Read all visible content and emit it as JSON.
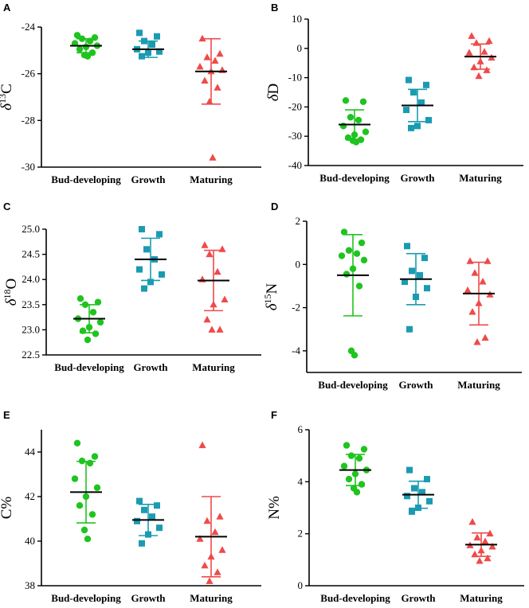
{
  "colors": {
    "bud": "#1fc41f",
    "growth": "#1a9bb2",
    "maturing": "#ef4a4a",
    "mean": "#000000",
    "axis": "#000000"
  },
  "chart_data": [
    {
      "panel": "A",
      "type": "scatter",
      "ylabel": "δ13C",
      "ylim": [
        -30,
        -24
      ],
      "yticks": [
        -24,
        -26,
        -28,
        -30
      ],
      "ytick_labels": [
        "-24",
        "-26",
        "-28",
        "-30"
      ],
      "categories": [
        "Bud-developing",
        "Growth",
        "Maturing"
      ],
      "series": [
        {
          "name": "Bud-developing",
          "marker": "circle",
          "values": [
            -24.35,
            -24.45,
            -24.5,
            -24.6,
            -24.7,
            -24.8,
            -24.85,
            -24.95,
            -25.1,
            -25.2,
            -25.25
          ],
          "mean": -24.8,
          "sd": 0.3
        },
        {
          "name": "Growth",
          "marker": "square",
          "values": [
            -24.25,
            -24.4,
            -24.6,
            -24.75,
            -24.95,
            -25.05,
            -25.1,
            -25.25
          ],
          "mean": -24.95,
          "sd": 0.35
        },
        {
          "name": "Maturing",
          "marker": "triangle",
          "values": [
            -24.5,
            -25.15,
            -25.3,
            -25.45,
            -25.7,
            -25.85,
            -25.9,
            -26.3,
            -26.6,
            -27.2,
            -29.6
          ],
          "mean": -25.9,
          "sd": 1.4
        }
      ]
    },
    {
      "panel": "B",
      "type": "scatter",
      "ylabel": "δD",
      "ylim": [
        -40,
        10
      ],
      "yticks": [
        10,
        0,
        -10,
        -20,
        -30,
        -40
      ],
      "ytick_labels": [
        "10",
        "0",
        "-10",
        "-20",
        "-30",
        "-40"
      ],
      "categories": [
        "Bud-developing",
        "Growth",
        "Maturing"
      ],
      "series": [
        {
          "name": "Bud-developing",
          "marker": "circle",
          "values": [
            -17.8,
            -18.2,
            -23.5,
            -24.5,
            -26.5,
            -28.5,
            -29.5,
            -30.5,
            -31.2,
            -31.5,
            -32.0
          ],
          "mean": -26.0,
          "sd": 5.0
        },
        {
          "name": "Growth",
          "marker": "square",
          "values": [
            -10.8,
            -12.5,
            -15.0,
            -18.5,
            -21.0,
            -24.5,
            -26.5,
            -27.2
          ],
          "mean": -19.5,
          "sd": 5.5
        },
        {
          "name": "Maturing",
          "marker": "triangle",
          "values": [
            4.2,
            2.5,
            1.8,
            -1.2,
            -1.5,
            -3.2,
            -4.5,
            -6.5,
            -7.5,
            -9.5
          ],
          "mean": -2.8,
          "sd": 4.3
        }
      ]
    },
    {
      "panel": "C",
      "type": "scatter",
      "ylabel": "δ18O",
      "ylim": [
        22.5,
        25.0
      ],
      "yticks": [
        25.0,
        24.5,
        24.0,
        23.5,
        23.0,
        22.5
      ],
      "ytick_labels": [
        "25.0",
        "24.5",
        "24.0",
        "23.5",
        "23.0",
        "22.5"
      ],
      "categories": [
        "Bud-developing",
        "Growth",
        "Maturing"
      ],
      "series": [
        {
          "name": "Bud-developing",
          "marker": "circle",
          "values": [
            23.62,
            23.55,
            23.5,
            23.35,
            23.22,
            23.15,
            23.05,
            22.98,
            22.92,
            22.8
          ],
          "mean": 23.22,
          "sd": 0.28
        },
        {
          "name": "Growth",
          "marker": "square",
          "values": [
            25.0,
            24.9,
            24.6,
            24.4,
            24.2,
            24.1,
            23.95,
            23.82
          ],
          "mean": 24.4,
          "sd": 0.42
        },
        {
          "name": "Maturing",
          "marker": "triangle",
          "values": [
            24.68,
            24.6,
            24.5,
            24.15,
            24.0,
            23.6,
            23.5,
            23.2,
            23.0,
            23.0
          ],
          "mean": 23.98,
          "sd": 0.6
        }
      ]
    },
    {
      "panel": "D",
      "type": "scatter",
      "ylabel": "δ15N",
      "ylim": [
        -5,
        2
      ],
      "yticks": [
        2,
        0,
        -2,
        -4
      ],
      "ytick_labels": [
        "2",
        "0",
        "-2",
        "-4"
      ],
      "categories": [
        "Bud-developing",
        "Growth",
        "Maturing"
      ],
      "series": [
        {
          "name": "Bud-developing",
          "marker": "circle",
          "values": [
            1.5,
            1.0,
            0.65,
            0.5,
            0.4,
            0.2,
            -0.2,
            -0.45,
            -1.0,
            -4.0,
            -4.2
          ],
          "mean": -0.5,
          "sd": 1.88
        },
        {
          "name": "Growth",
          "marker": "square",
          "values": [
            0.85,
            0.3,
            -0.3,
            -0.5,
            -0.8,
            -1.1,
            -1.5,
            -3.0
          ],
          "mean": -0.68,
          "sd": 1.18
        },
        {
          "name": "Maturing",
          "marker": "triangle",
          "values": [
            0.15,
            0.15,
            -0.4,
            -0.8,
            -1.2,
            -1.4,
            -1.8,
            -2.2,
            -3.4,
            -3.6
          ],
          "mean": -1.35,
          "sd": 1.45
        }
      ]
    },
    {
      "panel": "E",
      "type": "scatter",
      "ylabel": "C%",
      "ylim": [
        38,
        45
      ],
      "yticks": [
        44,
        42,
        40,
        38
      ],
      "ytick_labels": [
        "44",
        "42",
        "40",
        "38"
      ],
      "categories": [
        "Bud-developing",
        "Growth",
        "Maturing"
      ],
      "series": [
        {
          "name": "Bud-developing",
          "marker": "circle",
          "values": [
            44.4,
            43.8,
            43.6,
            43.5,
            42.8,
            42.4,
            42.0,
            41.6,
            41.2,
            40.5,
            40.1
          ],
          "mean": 42.2,
          "sd": 1.38
        },
        {
          "name": "Growth",
          "marker": "square",
          "values": [
            41.8,
            41.6,
            41.4,
            41.1,
            40.9,
            40.6,
            40.3,
            39.9
          ],
          "mean": 40.95,
          "sd": 0.7
        },
        {
          "name": "Maturing",
          "marker": "triangle",
          "values": [
            44.3,
            41.1,
            40.9,
            40.4,
            40.1,
            39.6,
            39.3,
            38.9,
            38.6,
            38.2
          ],
          "mean": 40.2,
          "sd": 1.8
        }
      ]
    },
    {
      "panel": "F",
      "type": "scatter",
      "ylabel": "N%",
      "ylim": [
        0,
        6
      ],
      "yticks": [
        6,
        4,
        2,
        0
      ],
      "ytick_labels": [
        "6",
        "4",
        "2",
        "0"
      ],
      "categories": [
        "Bud-developing",
        "Growth",
        "Maturing"
      ],
      "series": [
        {
          "name": "Bud-developing",
          "marker": "circle",
          "values": [
            5.4,
            5.25,
            5.0,
            4.9,
            4.6,
            4.45,
            4.3,
            4.1,
            3.9,
            3.75,
            3.6
          ],
          "mean": 4.45,
          "sd": 0.6
        },
        {
          "name": "Growth",
          "marker": "square",
          "values": [
            4.45,
            4.1,
            3.75,
            3.6,
            3.45,
            3.25,
            3.0,
            2.85
          ],
          "mean": 3.5,
          "sd": 0.52
        },
        {
          "name": "Maturing",
          "marker": "triangle",
          "values": [
            2.45,
            2.0,
            1.85,
            1.7,
            1.55,
            1.5,
            1.35,
            1.2,
            1.05,
            0.95
          ],
          "mean": 1.58,
          "sd": 0.45
        }
      ]
    }
  ]
}
